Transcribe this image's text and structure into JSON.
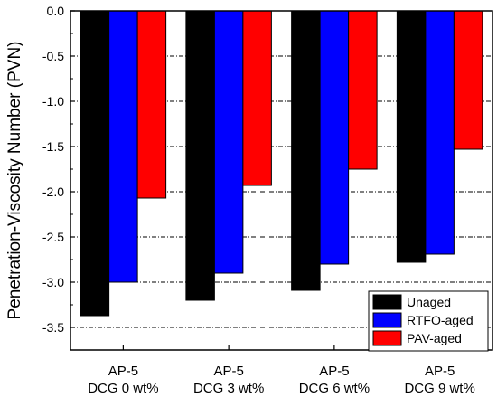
{
  "chart_data": {
    "type": "bar",
    "ylabel": "Penetration-Viscosity Number (PVN)",
    "ylim": [
      -3.75,
      0
    ],
    "yticks": [
      "0.0",
      "-0.5",
      "-1.0",
      "-1.5",
      "-2.0",
      "-2.5",
      "-3.0",
      "-3.5"
    ],
    "ytick_values": [
      0,
      -0.5,
      -1.0,
      -1.5,
      -2.0,
      -2.5,
      -3.0,
      -3.5
    ],
    "categories": [
      [
        "AP-5",
        "DCG 0 wt%"
      ],
      [
        "AP-5",
        "DCG 3 wt%"
      ],
      [
        "AP-5",
        "DCG 6 wt%"
      ],
      [
        "AP-5",
        "DCG 9 wt%"
      ]
    ],
    "series": [
      {
        "name": "Unaged",
        "color": "#000000",
        "values": [
          -3.37,
          -3.2,
          -3.09,
          -2.78
        ]
      },
      {
        "name": "RTFO-aged",
        "color": "#0000ff",
        "values": [
          -3.0,
          -2.9,
          -2.8,
          -2.69
        ]
      },
      {
        "name": "PAV-aged",
        "color": "#ff0000",
        "values": [
          -2.07,
          -1.93,
          -1.75,
          -1.53
        ]
      }
    ],
    "grid": "horizontal dashed",
    "legend_position": "bottom-right"
  }
}
